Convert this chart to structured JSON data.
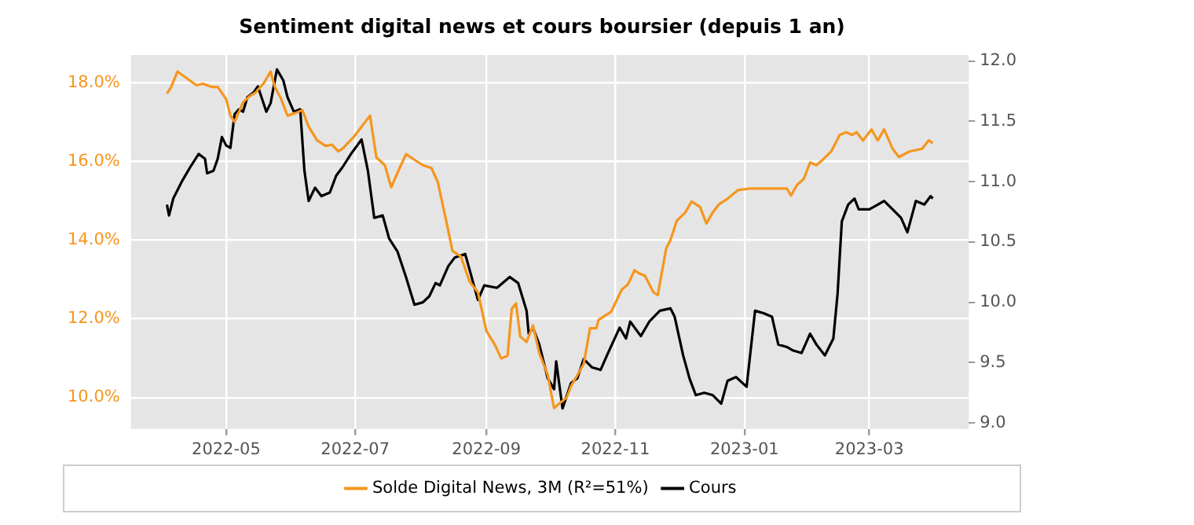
{
  "chart_data": {
    "type": "line",
    "title": "Sentiment digital news et cours boursier (depuis 1 an)",
    "legend": "bottom",
    "grid": true,
    "marker": "none",
    "line_style": "solid",
    "xlim": [
      "2022-03-17",
      "2023-04-17"
    ],
    "xticks": [
      {
        "value": "2022-05-01",
        "label": "2022-05"
      },
      {
        "value": "2022-07-01",
        "label": "2022-07"
      },
      {
        "value": "2022-09-01",
        "label": "2022-09"
      },
      {
        "value": "2022-11-01",
        "label": "2022-11"
      },
      {
        "value": "2023-01-01",
        "label": "2023-01"
      },
      {
        "value": "2023-03-01",
        "label": "2023-03"
      }
    ],
    "ylim": [
      9.2,
      18.7
    ],
    "yticks": [
      {
        "value": 10,
        "label": "10.0%"
      },
      {
        "value": 12,
        "label": "12.0%"
      },
      {
        "value": 14,
        "label": "14.0%"
      },
      {
        "value": 16,
        "label": "16.0%"
      },
      {
        "value": 18,
        "label": "18.0%"
      }
    ],
    "y2lim": [
      8.95,
      12.05
    ],
    "y2ticks": [
      {
        "value": 9,
        "label": "9.0"
      },
      {
        "value": 9.5,
        "label": "9.5"
      },
      {
        "value": 10,
        "label": "10.0"
      },
      {
        "value": 10.5,
        "label": "10.5"
      },
      {
        "value": 11,
        "label": "11.0"
      },
      {
        "value": 11.5,
        "label": "11.5"
      },
      {
        "value": 12,
        "label": "12.0"
      }
    ],
    "series": [
      {
        "name": "Solde Digital News, 3M (R²=51%)",
        "color": "#f5961e",
        "x": [
          "2022-04-03",
          "2022-04-05",
          "2022-04-08",
          "2022-04-10",
          "2022-04-17",
          "2022-04-20",
          "2022-04-24",
          "2022-04-27",
          "2022-05-01",
          "2022-05-03",
          "2022-05-05",
          "2022-05-09",
          "2022-05-12",
          "2022-05-15",
          "2022-05-19",
          "2022-05-22",
          "2022-05-24",
          "2022-05-27",
          "2022-05-30",
          "2022-06-03",
          "2022-06-06",
          "2022-06-09",
          "2022-06-13",
          "2022-06-17",
          "2022-06-20",
          "2022-06-23",
          "2022-06-25",
          "2022-06-30",
          "2022-07-04",
          "2022-07-08",
          "2022-07-11",
          "2022-07-15",
          "2022-07-18",
          "2022-07-22",
          "2022-07-25",
          "2022-07-29",
          "2022-08-02",
          "2022-08-06",
          "2022-08-09",
          "2022-08-13",
          "2022-08-16",
          "2022-08-20",
          "2022-08-24",
          "2022-08-28",
          "2022-09-01",
          "2022-09-05",
          "2022-09-08",
          "2022-09-11",
          "2022-09-13",
          "2022-09-15",
          "2022-09-17",
          "2022-09-20",
          "2022-09-23",
          "2022-09-26",
          "2022-09-30",
          "2022-10-03",
          "2022-10-06",
          "2022-10-09",
          "2022-10-11",
          "2022-10-14",
          "2022-10-17",
          "2022-10-20",
          "2022-10-23",
          "2022-10-24",
          "2022-10-30",
          "2022-11-04",
          "2022-11-07",
          "2022-11-10",
          "2022-11-12",
          "2022-11-15",
          "2022-11-19",
          "2022-11-21",
          "2022-11-25",
          "2022-11-27",
          "2022-11-30",
          "2022-12-04",
          "2022-12-07",
          "2022-12-11",
          "2022-12-14",
          "2022-12-17",
          "2022-12-20",
          "2022-12-24",
          "2022-12-29",
          "2023-01-04",
          "2023-01-21",
          "2023-01-23",
          "2023-01-26",
          "2023-01-29",
          "2023-02-01",
          "2023-02-04",
          "2023-02-07",
          "2023-02-11",
          "2023-02-15",
          "2023-02-18",
          "2023-02-21",
          "2023-02-23",
          "2023-02-26",
          "2023-03-02",
          "2023-03-05",
          "2023-03-08",
          "2023-03-12",
          "2023-03-15",
          "2023-03-20",
          "2023-03-26",
          "2023-03-29",
          "2023-03-31"
        ],
        "values": [
          17.72,
          17.89,
          18.28,
          18.2,
          17.93,
          17.97,
          17.89,
          17.89,
          17.58,
          17.16,
          17.0,
          17.5,
          17.65,
          17.75,
          18.0,
          18.28,
          17.89,
          17.58,
          17.16,
          17.23,
          17.3,
          16.88,
          16.53,
          16.39,
          16.42,
          16.25,
          16.32,
          16.6,
          16.88,
          17.16,
          16.1,
          15.9,
          15.34,
          15.83,
          16.18,
          16.04,
          15.9,
          15.83,
          15.48,
          14.49,
          13.72,
          13.58,
          12.95,
          12.67,
          11.69,
          11.34,
          10.99,
          11.06,
          12.25,
          12.39,
          11.55,
          11.41,
          11.83,
          11.13,
          10.57,
          9.73,
          9.87,
          10.0,
          10.29,
          10.57,
          10.85,
          11.76,
          11.76,
          11.97,
          12.18,
          12.74,
          12.88,
          13.23,
          13.16,
          13.09,
          12.67,
          12.6,
          13.79,
          14.0,
          14.49,
          14.7,
          14.98,
          14.84,
          14.42,
          14.7,
          14.91,
          15.05,
          15.27,
          15.31,
          15.31,
          15.13,
          15.41,
          15.55,
          15.97,
          15.9,
          16.04,
          16.25,
          16.67,
          16.74,
          16.67,
          16.74,
          16.53,
          16.81,
          16.53,
          16.81,
          16.32,
          16.11,
          16.25,
          16.32,
          16.53,
          16.46
        ]
      },
      {
        "name": "Cours",
        "color": "#000000",
        "axis": "y2",
        "x": [
          "2022-04-03",
          "2022-04-04",
          "2022-04-06",
          "2022-04-10",
          "2022-04-14",
          "2022-04-18",
          "2022-04-21",
          "2022-04-22",
          "2022-04-25",
          "2022-04-27",
          "2022-04-29",
          "2022-05-01",
          "2022-05-03",
          "2022-05-05",
          "2022-05-07",
          "2022-05-09",
          "2022-05-11",
          "2022-05-14",
          "2022-05-16",
          "2022-05-20",
          "2022-05-22",
          "2022-05-25",
          "2022-05-28",
          "2022-05-30",
          "2022-06-02",
          "2022-06-05",
          "2022-06-07",
          "2022-06-09",
          "2022-06-12",
          "2022-06-15",
          "2022-06-19",
          "2022-06-22",
          "2022-06-25",
          "2022-06-29",
          "2022-07-04",
          "2022-07-07",
          "2022-07-10",
          "2022-07-14",
          "2022-07-17",
          "2022-07-21",
          "2022-07-25",
          "2022-07-29",
          "2022-08-02",
          "2022-08-05",
          "2022-08-08",
          "2022-08-10",
          "2022-08-14",
          "2022-08-17",
          "2022-08-22",
          "2022-08-25",
          "2022-08-28",
          "2022-08-31",
          "2022-09-06",
          "2022-09-12",
          "2022-09-16",
          "2022-09-20",
          "2022-09-21",
          "2022-09-23",
          "2022-09-26",
          "2022-09-30",
          "2022-10-03",
          "2022-10-04",
          "2022-10-07",
          "2022-10-11",
          "2022-10-14",
          "2022-10-17",
          "2022-10-21",
          "2022-10-25",
          "2022-10-28",
          "2022-11-03",
          "2022-11-06",
          "2022-11-08",
          "2022-11-13",
          "2022-11-17",
          "2022-11-22",
          "2022-11-27",
          "2022-11-29",
          "2022-12-03",
          "2022-12-06",
          "2022-12-09",
          "2022-12-13",
          "2022-12-17",
          "2022-12-21",
          "2022-12-24",
          "2022-12-28",
          "2023-01-02",
          "2023-01-06",
          "2023-01-10",
          "2023-01-14",
          "2023-01-17",
          "2023-01-21",
          "2023-01-24",
          "2023-01-28",
          "2023-02-01",
          "2023-02-04",
          "2023-02-08",
          "2023-02-12",
          "2023-02-14",
          "2023-02-16",
          "2023-02-19",
          "2023-02-22",
          "2023-02-24",
          "2023-03-01",
          "2023-03-05",
          "2023-03-08",
          "2023-03-12",
          "2023-03-16",
          "2023-03-19",
          "2023-03-23",
          "2023-03-27",
          "2023-03-30",
          "2023-03-31"
        ],
        "values": [
          10.81,
          10.72,
          10.86,
          11.0,
          11.12,
          11.23,
          11.19,
          11.07,
          11.09,
          11.19,
          11.37,
          11.3,
          11.28,
          11.56,
          11.6,
          11.58,
          11.7,
          11.74,
          11.79,
          11.58,
          11.65,
          11.93,
          11.84,
          11.7,
          11.58,
          11.6,
          11.09,
          10.84,
          10.95,
          10.88,
          10.91,
          11.05,
          11.12,
          11.23,
          11.35,
          11.09,
          10.7,
          10.72,
          10.53,
          10.42,
          10.21,
          9.98,
          10.0,
          10.05,
          10.16,
          10.14,
          10.3,
          10.37,
          10.4,
          10.21,
          10.02,
          10.14,
          10.12,
          10.21,
          10.16,
          9.93,
          9.74,
          9.79,
          9.65,
          9.37,
          9.28,
          9.51,
          9.12,
          9.33,
          9.37,
          9.53,
          9.46,
          9.44,
          9.56,
          9.79,
          9.7,
          9.84,
          9.72,
          9.84,
          9.93,
          9.95,
          9.88,
          9.56,
          9.37,
          9.23,
          9.25,
          9.23,
          9.16,
          9.35,
          9.38,
          9.3,
          9.93,
          9.91,
          9.88,
          9.65,
          9.63,
          9.6,
          9.58,
          9.74,
          9.65,
          9.56,
          9.7,
          10.07,
          10.67,
          10.81,
          10.86,
          10.77,
          10.77,
          10.81,
          10.84,
          10.77,
          10.7,
          10.58,
          10.84,
          10.81,
          10.88,
          10.86
        ]
      }
    ]
  }
}
